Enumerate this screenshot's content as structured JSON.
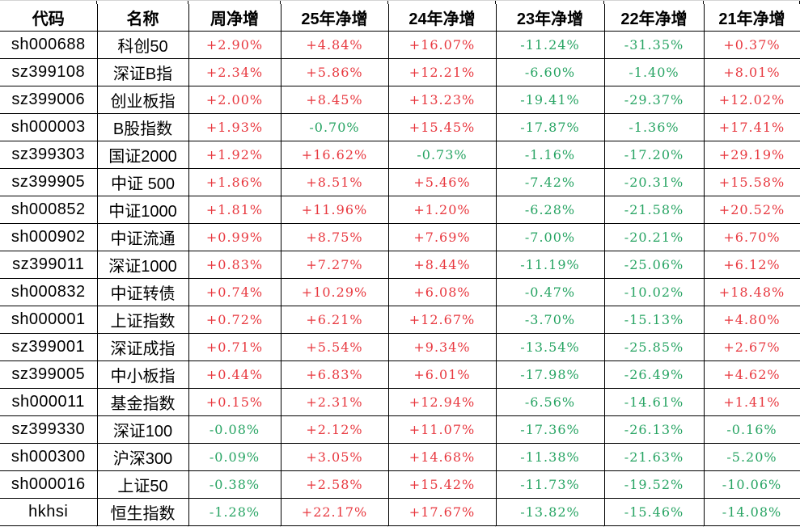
{
  "chart_data": {
    "type": "table",
    "columns": [
      "代码",
      "名称",
      "周净增",
      "25年净增",
      "24年净增",
      "23年净增",
      "22年净增",
      "21年净增"
    ],
    "value_columns_note": "values array maps to columns 周净增,25年净增,24年净增,23年净增,22年净增,21年净增",
    "rows": [
      {
        "code": "sh000688",
        "name": "科创50",
        "values": [
          "+2.90%",
          "+4.84%",
          "+16.07%",
          "-11.24%",
          "-31.35%",
          "+0.37%"
        ]
      },
      {
        "code": "sz399108",
        "name": "深证B指",
        "values": [
          "+2.34%",
          "+5.86%",
          "+12.21%",
          "-6.60%",
          "-1.40%",
          "+8.01%"
        ]
      },
      {
        "code": "sz399006",
        "name": "创业板指",
        "values": [
          "+2.00%",
          "+8.45%",
          "+13.23%",
          "-19.41%",
          "-29.37%",
          "+12.02%"
        ]
      },
      {
        "code": "sh000003",
        "name": "B股指数",
        "values": [
          "+1.93%",
          "-0.70%",
          "+15.45%",
          "-17.87%",
          "-1.36%",
          "+17.41%"
        ]
      },
      {
        "code": "sz399303",
        "name": "国证2000",
        "values": [
          "+1.92%",
          "+16.62%",
          "-0.73%",
          "-1.16%",
          "-17.20%",
          "+29.19%"
        ]
      },
      {
        "code": "sz399905",
        "name": "中证 500",
        "values": [
          "+1.86%",
          "+8.51%",
          "+5.46%",
          "-7.42%",
          "-20.31%",
          "+15.58%"
        ]
      },
      {
        "code": "sh000852",
        "name": "中证1000",
        "values": [
          "+1.81%",
          "+11.96%",
          "+1.20%",
          "-6.28%",
          "-21.58%",
          "+20.52%"
        ]
      },
      {
        "code": "sh000902",
        "name": "中证流通",
        "values": [
          "+0.99%",
          "+8.75%",
          "+7.69%",
          "-7.00%",
          "-20.21%",
          "+6.70%"
        ]
      },
      {
        "code": "sz399011",
        "name": "深证1000",
        "values": [
          "+0.83%",
          "+7.27%",
          "+8.44%",
          "-11.19%",
          "-25.06%",
          "+6.12%"
        ]
      },
      {
        "code": "sh000832",
        "name": "中证转债",
        "values": [
          "+0.74%",
          "+10.29%",
          "+6.08%",
          "-0.47%",
          "-10.02%",
          "+18.48%"
        ]
      },
      {
        "code": "sh000001",
        "name": "上证指数",
        "values": [
          "+0.72%",
          "+6.21%",
          "+12.67%",
          "-3.70%",
          "-15.13%",
          "+4.80%"
        ]
      },
      {
        "code": "sz399001",
        "name": "深证成指",
        "values": [
          "+0.71%",
          "+5.54%",
          "+9.34%",
          "-13.54%",
          "-25.85%",
          "+2.67%"
        ]
      },
      {
        "code": "sz399005",
        "name": "中小板指",
        "values": [
          "+0.44%",
          "+6.83%",
          "+6.01%",
          "-17.98%",
          "-26.49%",
          "+4.62%"
        ]
      },
      {
        "code": "sh000011",
        "name": "基金指数",
        "values": [
          "+0.15%",
          "+2.31%",
          "+12.94%",
          "-6.56%",
          "-14.61%",
          "+1.41%"
        ]
      },
      {
        "code": "sz399330",
        "name": "深证100",
        "values": [
          "-0.08%",
          "+2.12%",
          "+11.07%",
          "-17.36%",
          "-26.13%",
          "-0.16%"
        ]
      },
      {
        "code": "sh000300",
        "name": "沪深300",
        "values": [
          "-0.09%",
          "+3.05%",
          "+14.68%",
          "-11.38%",
          "-21.63%",
          "-5.20%"
        ]
      },
      {
        "code": "sh000016",
        "name": "上证50",
        "values": [
          "-0.38%",
          "+2.58%",
          "+15.42%",
          "-11.73%",
          "-19.52%",
          "-10.06%"
        ]
      },
      {
        "code": "hkhsi",
        "name": "恒生指数",
        "values": [
          "-1.28%",
          "+22.17%",
          "+17.67%",
          "-13.82%",
          "-15.46%",
          "-14.08%"
        ]
      }
    ],
    "colors": {
      "positive_value": "#e8383f",
      "negative_value": "#27a463",
      "grid_border": "#000000",
      "header_text": "#000000",
      "background": "#ffffff"
    },
    "legend_rule": "positive values rendered red, negative values rendered green"
  }
}
